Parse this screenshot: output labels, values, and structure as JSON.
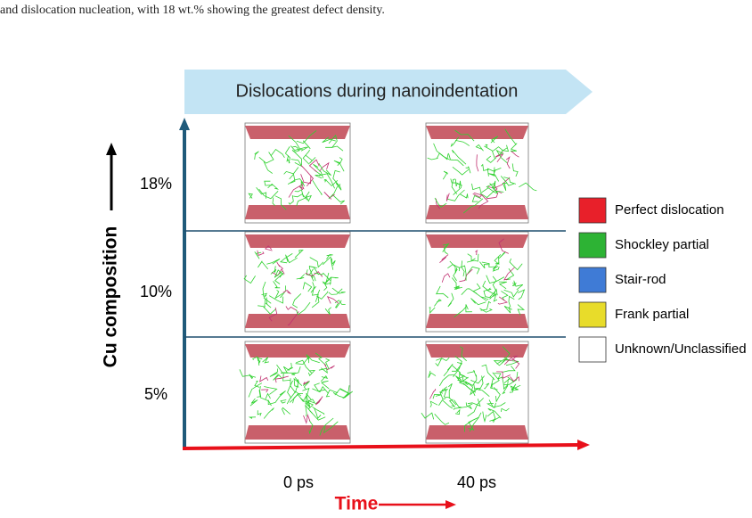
{
  "caption": "and dislocation nucleation, with 18 wt.% showing the greatest defect density.",
  "banner": "Dislocations during nanoindentation",
  "y_axis_label": "Cu composition",
  "x_axis_label": "Time",
  "rows": [
    "18%",
    "10%",
    "5%"
  ],
  "columns": [
    "0 ps",
    "40 ps"
  ],
  "legend": [
    {
      "name": "Perfect dislocation",
      "color": "#e8202a"
    },
    {
      "name": "Shockley partial",
      "color": "#2db334"
    },
    {
      "name": "Stair-rod",
      "color": "#3f7bd6"
    },
    {
      "name": "Frank partial",
      "color": "#e8dc2a"
    },
    {
      "name": "Unknown/Unclassified",
      "color": "#ffffff"
    }
  ]
}
